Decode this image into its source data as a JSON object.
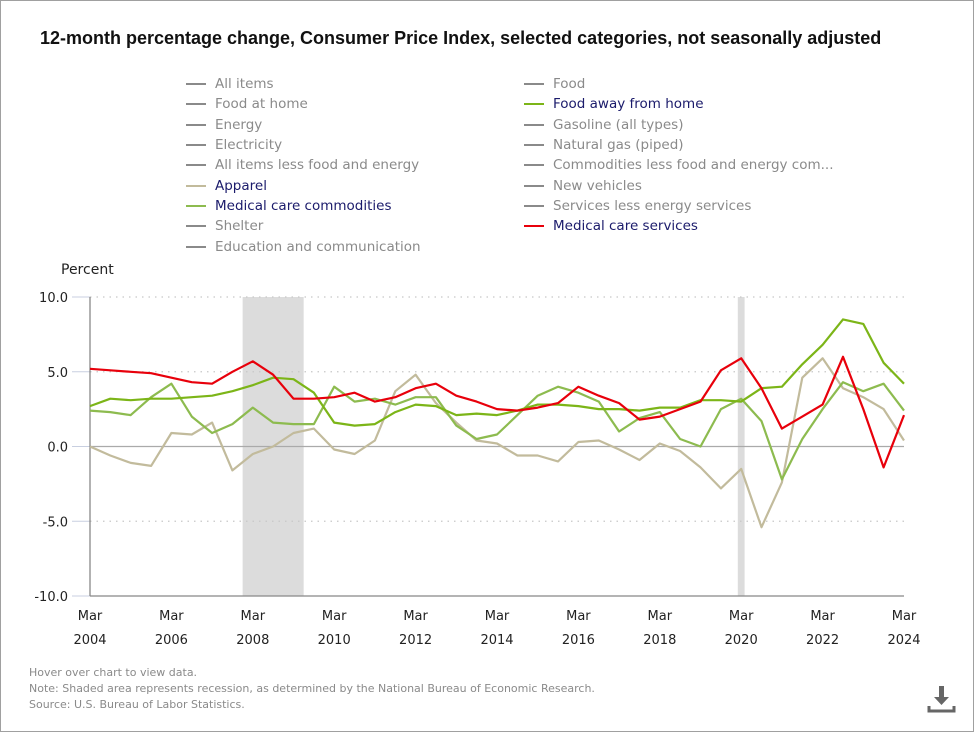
{
  "title": "12-month percentage change, Consumer Price Index, selected categories, not seasonally adjusted",
  "legend": {
    "col1": [
      {
        "label": "All items",
        "color": "#8a8a8a",
        "active": false
      },
      {
        "label": "Food at home",
        "color": "#8a8a8a",
        "active": false
      },
      {
        "label": "Energy",
        "color": "#8a8a8a",
        "active": false
      },
      {
        "label": "Electricity",
        "color": "#8a8a8a",
        "active": false
      },
      {
        "label": "All items less food and energy",
        "color": "#8a8a8a",
        "active": false
      },
      {
        "label": "Apparel",
        "color": "#c2bb9c",
        "active": true
      },
      {
        "label": "Medical care commodities",
        "color": "#8dbb4f",
        "active": true
      },
      {
        "label": "Shelter",
        "color": "#8a8a8a",
        "active": false
      },
      {
        "label": "Education and communication",
        "color": "#8a8a8a",
        "active": false
      }
    ],
    "col2": [
      {
        "label": "Food",
        "color": "#8a8a8a",
        "active": false
      },
      {
        "label": "Food away from home",
        "color": "#7cb518",
        "active": true
      },
      {
        "label": "Gasoline (all types)",
        "color": "#8a8a8a",
        "active": false
      },
      {
        "label": "Natural gas (piped)",
        "color": "#8a8a8a",
        "active": false
      },
      {
        "label": "Commodities less food and energy com...",
        "color": "#8a8a8a",
        "active": false
      },
      {
        "label": "New vehicles",
        "color": "#8a8a8a",
        "active": false
      },
      {
        "label": "Services less energy services",
        "color": "#8a8a8a",
        "active": false
      },
      {
        "label": "Medical care services",
        "color": "#e8000b",
        "active": true
      }
    ]
  },
  "footer": {
    "hover": "Hover over chart to view data.",
    "note": "Note: Shaded area represents recession, as determined by the National Bureau of Economic Research.",
    "source": "Source: U.S. Bureau of Labor Statistics."
  },
  "download_icon": "download-icon",
  "chart_data": {
    "type": "line",
    "title": "12-month percentage change, Consumer Price Index, selected categories, not seasonally adjusted",
    "ylabel": "Percent",
    "xlabel": "",
    "ylim": [
      -10,
      10
    ],
    "yticks": [
      10,
      5,
      0,
      -5,
      -10
    ],
    "ytick_labels": [
      "10.0",
      "5.0",
      "0.0",
      "-5.0",
      "-10.0"
    ],
    "xlim": [
      "2004-03",
      "2024-03"
    ],
    "xticks": [
      "2004-03",
      "2006-03",
      "2008-03",
      "2010-03",
      "2012-03",
      "2014-03",
      "2016-03",
      "2018-03",
      "2020-03",
      "2022-03",
      "2024-03"
    ],
    "xtick_labels": [
      [
        "Mar",
        "2004"
      ],
      [
        "Mar",
        "2006"
      ],
      [
        "Mar",
        "2008"
      ],
      [
        "Mar",
        "2010"
      ],
      [
        "Mar",
        "2012"
      ],
      [
        "Mar",
        "2014"
      ],
      [
        "Mar",
        "2016"
      ],
      [
        "Mar",
        "2018"
      ],
      [
        "Mar",
        "2020"
      ],
      [
        "Mar",
        "2022"
      ],
      [
        "Mar",
        "2024"
      ]
    ],
    "grid": "horizontal-dotted",
    "recessions": [
      [
        "2007-12",
        "2009-06"
      ],
      [
        "2020-02",
        "2020-04"
      ]
    ],
    "x": [
      "2004-03",
      "2004-09",
      "2005-03",
      "2005-09",
      "2006-03",
      "2006-09",
      "2007-03",
      "2007-09",
      "2008-03",
      "2008-09",
      "2009-03",
      "2009-09",
      "2010-03",
      "2010-09",
      "2011-03",
      "2011-09",
      "2012-03",
      "2012-09",
      "2013-03",
      "2013-09",
      "2014-03",
      "2014-09",
      "2015-03",
      "2015-09",
      "2016-03",
      "2016-09",
      "2017-03",
      "2017-09",
      "2018-03",
      "2018-09",
      "2019-03",
      "2019-09",
      "2020-03",
      "2020-09",
      "2021-03",
      "2021-09",
      "2022-03",
      "2022-09",
      "2023-03",
      "2023-09",
      "2024-03"
    ],
    "series": [
      {
        "name": "Medical care services",
        "color": "#e8000b",
        "values": [
          5.2,
          5.1,
          5.0,
          4.9,
          4.6,
          4.3,
          4.2,
          5.0,
          5.7,
          4.8,
          3.2,
          3.2,
          3.3,
          3.6,
          3.0,
          3.3,
          3.9,
          4.2,
          3.4,
          3.0,
          2.5,
          2.4,
          2.6,
          2.9,
          4.0,
          3.4,
          2.9,
          1.8,
          2.0,
          2.5,
          3.0,
          5.1,
          5.9,
          3.9,
          1.2,
          2.0,
          2.8,
          6.0,
          2.5,
          -1.4,
          2.1
        ]
      },
      {
        "name": "Food away from home",
        "color": "#7cb518",
        "values": [
          2.7,
          3.2,
          3.1,
          3.2,
          3.2,
          3.3,
          3.4,
          3.7,
          4.1,
          4.6,
          4.5,
          3.6,
          1.6,
          1.4,
          1.5,
          2.3,
          2.8,
          2.7,
          2.1,
          2.2,
          2.1,
          2.4,
          2.8,
          2.8,
          2.7,
          2.5,
          2.5,
          2.4,
          2.6,
          2.6,
          3.1,
          3.1,
          3.0,
          3.9,
          4.0,
          5.5,
          6.8,
          8.5,
          8.2,
          5.6,
          4.2
        ]
      },
      {
        "name": "Medical care commodities",
        "color": "#8dbb4f",
        "values": [
          2.4,
          2.3,
          2.1,
          3.3,
          4.2,
          2.0,
          0.9,
          1.5,
          2.6,
          1.6,
          1.5,
          1.5,
          4.0,
          3.0,
          3.2,
          2.8,
          3.3,
          3.3,
          1.4,
          0.5,
          0.8,
          2.1,
          3.4,
          4.0,
          3.6,
          3.0,
          1.0,
          1.9,
          2.3,
          0.5,
          0.0,
          2.5,
          3.2,
          1.7,
          -2.2,
          0.5,
          2.5,
          4.3,
          3.7,
          4.2,
          2.4
        ]
      },
      {
        "name": "Apparel",
        "color": "#c2bb9c",
        "values": [
          0.0,
          -0.6,
          -1.1,
          -1.3,
          0.9,
          0.8,
          1.6,
          -1.6,
          -0.5,
          0.0,
          0.9,
          1.2,
          -0.2,
          -0.5,
          0.4,
          3.7,
          4.8,
          2.9,
          1.6,
          0.4,
          0.2,
          -0.6,
          -0.6,
          -1.0,
          0.3,
          0.4,
          -0.2,
          -0.9,
          0.2,
          -0.3,
          -1.4,
          -2.8,
          -1.5,
          -5.4,
          -2.4,
          4.6,
          5.9,
          3.9,
          3.3,
          2.5,
          0.4
        ]
      }
    ]
  }
}
